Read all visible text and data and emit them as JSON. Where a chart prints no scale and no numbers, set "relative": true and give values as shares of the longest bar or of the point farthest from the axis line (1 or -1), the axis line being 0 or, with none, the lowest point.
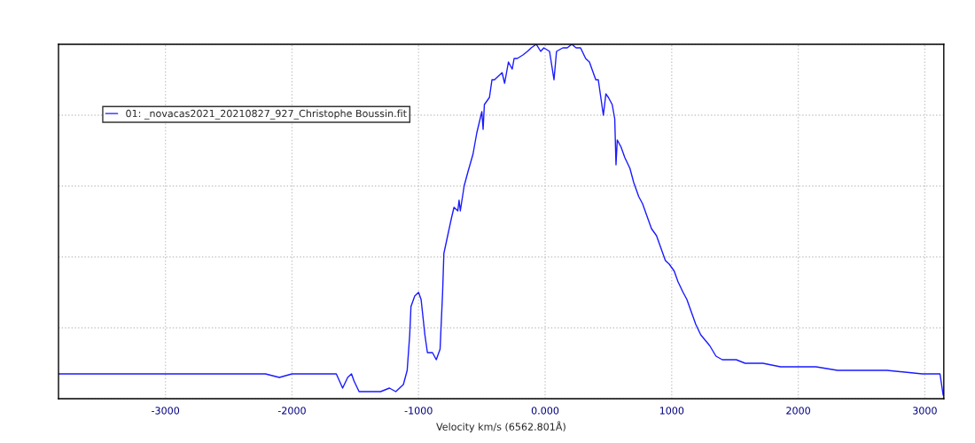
{
  "chart_data": {
    "type": "line",
    "relative": true,
    "xlabel": "Velocity km/s (6562.801Å)",
    "xlim": [
      -3845,
      3150
    ],
    "xticks": [
      -3000,
      -2000,
      -1000,
      {
        "value": 0,
        "label": "0.000"
      },
      1000,
      2000,
      3000
    ],
    "tick_labels": "x",
    "grid": true,
    "legend": "top left",
    "marker": "none",
    "line_style": "solid",
    "series": [
      {
        "name": "01: _novacas2021_20210827_927_Christophe Boussin.fit",
        "color": "#1a1aff",
        "x": [
          -3845,
          -3610,
          -3260,
          -2910,
          -2560,
          -2210,
          -2100,
          -2000,
          -1720,
          -1650,
          -1600,
          -1560,
          -1530,
          -1510,
          -1470,
          -1400,
          -1300,
          -1230,
          -1180,
          -1120,
          -1090,
          -1070,
          -1060,
          -1030,
          -1000,
          -980,
          -950,
          -930,
          -890,
          -860,
          -830,
          -810,
          -800,
          -770,
          -740,
          -720,
          -690,
          -680,
          -670,
          -640,
          -610,
          -570,
          -540,
          -500,
          -490,
          -480,
          -440,
          -420,
          -400,
          -370,
          -340,
          -320,
          -290,
          -260,
          -245,
          -220,
          -175,
          -140,
          -110,
          -70,
          -35,
          -10,
          35,
          70,
          90,
          140,
          175,
          210,
          245,
          280,
          320,
          350,
          370,
          400,
          420,
          440,
          460,
          480,
          500,
          530,
          550,
          560,
          570,
          600,
          630,
          670,
          700,
          740,
          770,
          810,
          840,
          880,
          910,
          950,
          980,
          1020,
          1050,
          1090,
          1120,
          1160,
          1190,
          1230,
          1300,
          1350,
          1400,
          1440,
          1510,
          1580,
          1720,
          1860,
          2000,
          2140,
          2310,
          2420,
          2700,
          2980,
          3120,
          3145
        ],
        "values": [
          0.07,
          0.07,
          0.07,
          0.07,
          0.07,
          0.07,
          0.06,
          0.07,
          0.07,
          0.07,
          0.03,
          0.06,
          0.07,
          0.05,
          0.02,
          0.02,
          0.02,
          0.03,
          0.02,
          0.04,
          0.08,
          0.18,
          0.26,
          0.29,
          0.3,
          0.28,
          0.18,
          0.13,
          0.13,
          0.11,
          0.14,
          0.3,
          0.41,
          0.46,
          0.51,
          0.54,
          0.53,
          0.56,
          0.53,
          0.6,
          0.64,
          0.69,
          0.75,
          0.81,
          0.76,
          0.83,
          0.85,
          0.9,
          0.9,
          0.91,
          0.92,
          0.89,
          0.95,
          0.93,
          0.96,
          0.96,
          0.97,
          0.98,
          0.99,
          1.0,
          0.98,
          0.99,
          0.98,
          0.9,
          0.98,
          0.99,
          0.99,
          1.0,
          0.99,
          0.99,
          0.96,
          0.95,
          0.93,
          0.9,
          0.9,
          0.85,
          0.8,
          0.86,
          0.85,
          0.83,
          0.79,
          0.66,
          0.73,
          0.71,
          0.68,
          0.65,
          0.61,
          0.57,
          0.55,
          0.51,
          0.48,
          0.46,
          0.43,
          0.39,
          0.38,
          0.36,
          0.33,
          0.3,
          0.28,
          0.24,
          0.21,
          0.18,
          0.15,
          0.12,
          0.11,
          0.11,
          0.11,
          0.1,
          0.1,
          0.09,
          0.09,
          0.09,
          0.08,
          0.08,
          0.08,
          0.07,
          0.07,
          0.01
        ]
      }
    ]
  }
}
